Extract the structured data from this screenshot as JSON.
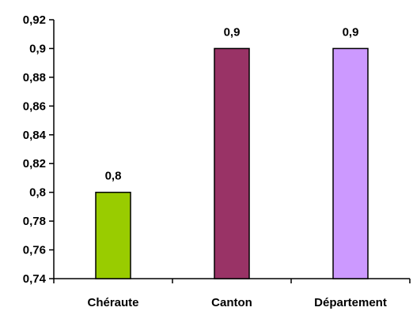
{
  "chart_data": {
    "type": "bar",
    "title": "",
    "xlabel": "",
    "ylabel": "",
    "categories": [
      "Chéraute",
      "Canton",
      "Département"
    ],
    "values": [
      0.8,
      0.9,
      0.9
    ],
    "data_labels": [
      "0,8",
      "0,9",
      "0,9"
    ],
    "colors": [
      "#99cc00",
      "#993366",
      "#cc99ff"
    ],
    "ylim": [
      0.74,
      0.92
    ],
    "yticks": [
      0.74,
      0.76,
      0.78,
      0.8,
      0.82,
      0.84,
      0.86,
      0.88,
      0.9,
      0.92
    ],
    "ytick_labels": [
      "0,74",
      "0,76",
      "0,78",
      "0,8",
      "0,82",
      "0,84",
      "0,86",
      "0,88",
      "0,9",
      "0,92"
    ],
    "grid": false,
    "legend": "none"
  }
}
